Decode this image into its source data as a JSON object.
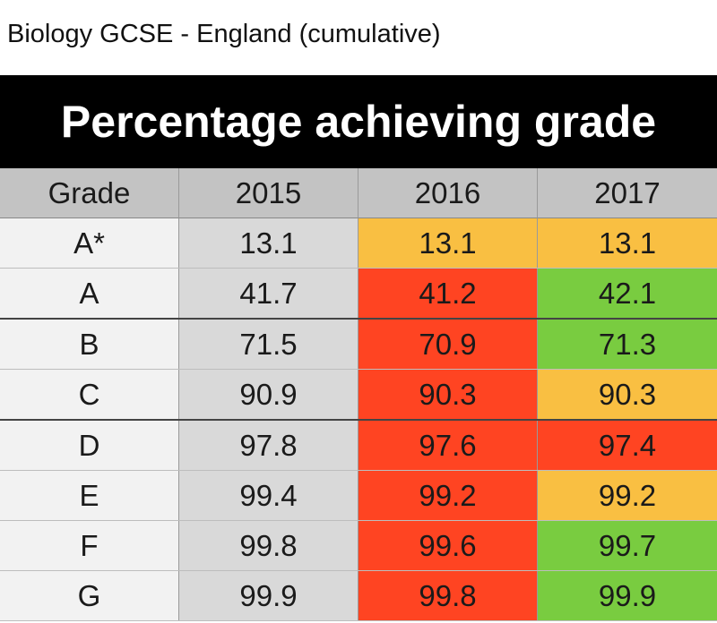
{
  "page_title": "Biology GCSE - England (cumulative)",
  "chart_data": {
    "type": "table",
    "title": "Percentage achieving grade",
    "columns": [
      "Grade",
      "2015",
      "2016",
      "2017"
    ],
    "rows": [
      {
        "grade": "A*",
        "values": [
          "13.1",
          "13.1",
          "13.1"
        ],
        "colors": [
          "#d9d9d9",
          "#f9bf42",
          "#f9bf42"
        ]
      },
      {
        "grade": "A",
        "values": [
          "41.7",
          "41.2",
          "42.1"
        ],
        "colors": [
          "#d9d9d9",
          "#ff4422",
          "#79cc40"
        ]
      },
      {
        "grade": "B",
        "values": [
          "71.5",
          "70.9",
          "71.3"
        ],
        "colors": [
          "#d9d9d9",
          "#ff4422",
          "#79cc40"
        ]
      },
      {
        "grade": "C",
        "values": [
          "90.9",
          "90.3",
          "90.3"
        ],
        "colors": [
          "#d9d9d9",
          "#ff4422",
          "#f9bf42"
        ]
      },
      {
        "grade": "D",
        "values": [
          "97.8",
          "97.6",
          "97.4"
        ],
        "colors": [
          "#d9d9d9",
          "#ff4422",
          "#ff4422"
        ]
      },
      {
        "grade": "E",
        "values": [
          "99.4",
          "99.2",
          "99.2"
        ],
        "colors": [
          "#d9d9d9",
          "#ff4422",
          "#f9bf42"
        ]
      },
      {
        "grade": "F",
        "values": [
          "99.8",
          "99.6",
          "99.7"
        ],
        "colors": [
          "#d9d9d9",
          "#ff4422",
          "#79cc40"
        ]
      },
      {
        "grade": "G",
        "values": [
          "99.9",
          "99.8",
          "99.9"
        ],
        "colors": [
          "#d9d9d9",
          "#ff4422",
          "#79cc40"
        ]
      }
    ]
  }
}
